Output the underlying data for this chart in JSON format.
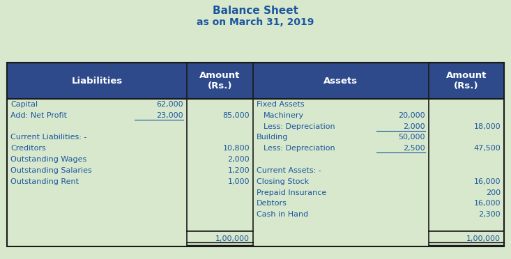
{
  "title_line1": "Balance Sheet",
  "title_line2": "as on March 31, 2019",
  "title_color": "#1A56A0",
  "header_bg_color": "#2E4A8B",
  "header_text_color": "#FFFFFF",
  "body_bg_color": "#D8E8CC",
  "cell_text_color": "#1A56A0",
  "border_color": "#1A1A1A",
  "fig_bg_color": "#D8E8CC",
  "total_liabilities": "1,00,000",
  "total_assets": "1,00,000",
  "liabilities_rows": [
    {
      "col0": "Capital",
      "col0b": "62,000",
      "col1": "",
      "underline_col0b": false
    },
    {
      "col0": "Add: Net Profit",
      "col0b": "23,000",
      "col1": "85,000",
      "underline_col0b": true
    },
    {
      "col0": "",
      "col0b": "",
      "col1": "",
      "underline_col0b": false
    },
    {
      "col0": "Current Liabilities: -",
      "col0b": "",
      "col1": "",
      "underline_col0b": false
    },
    {
      "col0": "Creditors",
      "col0b": "",
      "col1": "10,800",
      "underline_col0b": false
    },
    {
      "col0": "Outstanding Wages",
      "col0b": "",
      "col1": "2,000",
      "underline_col0b": false
    },
    {
      "col0": "Outstanding Salaries",
      "col0b": "",
      "col1": "1,200",
      "underline_col0b": false
    },
    {
      "col0": "Outstanding Rent",
      "col0b": "",
      "col1": "1,000",
      "underline_col0b": false
    },
    {
      "col0": "",
      "col0b": "",
      "col1": "",
      "underline_col0b": false
    },
    {
      "col0": "",
      "col0b": "",
      "col1": "",
      "underline_col0b": false
    },
    {
      "col0": "",
      "col0b": "",
      "col1": "",
      "underline_col0b": false
    },
    {
      "col0": "",
      "col0b": "",
      "col1": "",
      "underline_col0b": false
    }
  ],
  "assets_rows": [
    {
      "col0": "Fixed Assets",
      "col0b": "",
      "col1": "",
      "indent": false,
      "underline_col0b": false
    },
    {
      "col0": "Machinery",
      "col0b": "20,000",
      "col1": "",
      "indent": true,
      "underline_col0b": false
    },
    {
      "col0": "Less: Depreciation",
      "col0b": "2,000",
      "col1": "18,000",
      "indent": true,
      "underline_col0b": true
    },
    {
      "col0": "Building",
      "col0b": "50,000",
      "col1": "",
      "indent": false,
      "underline_col0b": false
    },
    {
      "col0": "Less: Depreciation",
      "col0b": "2,500",
      "col1": "47,500",
      "indent": true,
      "underline_col0b": true
    },
    {
      "col0": "",
      "col0b": "",
      "col1": "",
      "indent": false,
      "underline_col0b": false
    },
    {
      "col0": "Current Assets: -",
      "col0b": "",
      "col1": "",
      "indent": false,
      "underline_col0b": false
    },
    {
      "col0": "Closing Stock",
      "col0b": "",
      "col1": "16,000",
      "indent": false,
      "underline_col0b": false
    },
    {
      "col0": "Prepaid Insurance",
      "col0b": "",
      "col1": "200",
      "indent": false,
      "underline_col0b": false
    },
    {
      "col0": "Debtors",
      "col0b": "",
      "col1": "16,000",
      "indent": false,
      "underline_col0b": false
    },
    {
      "col0": "Cash in Hand",
      "col0b": "",
      "col1": "2,300",
      "indent": false,
      "underline_col0b": false
    },
    {
      "col0": "",
      "col0b": "",
      "col1": "",
      "indent": false,
      "underline_col0b": false
    }
  ]
}
